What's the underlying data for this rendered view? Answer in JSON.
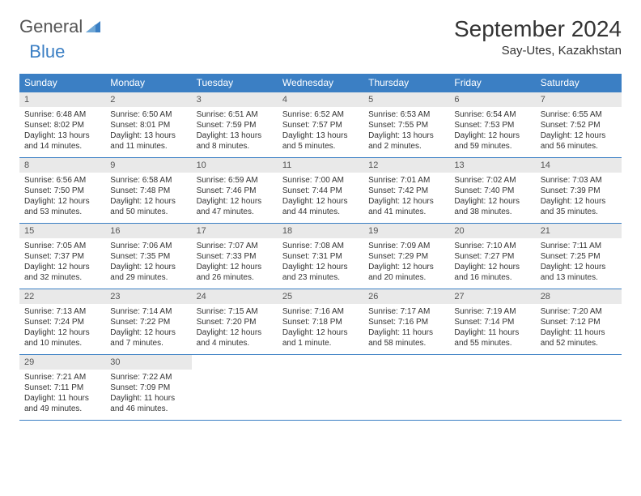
{
  "brand": {
    "part1": "General",
    "part2": "Blue"
  },
  "title": "September 2024",
  "location": "Say-Utes, Kazakhstan",
  "colors": {
    "header_bg": "#3b7fc4",
    "header_text": "#ffffff",
    "daynum_bg": "#e9e9e9",
    "text": "#333333",
    "rule": "#3b7fc4"
  },
  "dow": [
    "Sunday",
    "Monday",
    "Tuesday",
    "Wednesday",
    "Thursday",
    "Friday",
    "Saturday"
  ],
  "days": [
    {
      "n": "1",
      "sr": "Sunrise: 6:48 AM",
      "ss": "Sunset: 8:02 PM",
      "dl1": "Daylight: 13 hours",
      "dl2": "and 14 minutes."
    },
    {
      "n": "2",
      "sr": "Sunrise: 6:50 AM",
      "ss": "Sunset: 8:01 PM",
      "dl1": "Daylight: 13 hours",
      "dl2": "and 11 minutes."
    },
    {
      "n": "3",
      "sr": "Sunrise: 6:51 AM",
      "ss": "Sunset: 7:59 PM",
      "dl1": "Daylight: 13 hours",
      "dl2": "and 8 minutes."
    },
    {
      "n": "4",
      "sr": "Sunrise: 6:52 AM",
      "ss": "Sunset: 7:57 PM",
      "dl1": "Daylight: 13 hours",
      "dl2": "and 5 minutes."
    },
    {
      "n": "5",
      "sr": "Sunrise: 6:53 AM",
      "ss": "Sunset: 7:55 PM",
      "dl1": "Daylight: 13 hours",
      "dl2": "and 2 minutes."
    },
    {
      "n": "6",
      "sr": "Sunrise: 6:54 AM",
      "ss": "Sunset: 7:53 PM",
      "dl1": "Daylight: 12 hours",
      "dl2": "and 59 minutes."
    },
    {
      "n": "7",
      "sr": "Sunrise: 6:55 AM",
      "ss": "Sunset: 7:52 PM",
      "dl1": "Daylight: 12 hours",
      "dl2": "and 56 minutes."
    },
    {
      "n": "8",
      "sr": "Sunrise: 6:56 AM",
      "ss": "Sunset: 7:50 PM",
      "dl1": "Daylight: 12 hours",
      "dl2": "and 53 minutes."
    },
    {
      "n": "9",
      "sr": "Sunrise: 6:58 AM",
      "ss": "Sunset: 7:48 PM",
      "dl1": "Daylight: 12 hours",
      "dl2": "and 50 minutes."
    },
    {
      "n": "10",
      "sr": "Sunrise: 6:59 AM",
      "ss": "Sunset: 7:46 PM",
      "dl1": "Daylight: 12 hours",
      "dl2": "and 47 minutes."
    },
    {
      "n": "11",
      "sr": "Sunrise: 7:00 AM",
      "ss": "Sunset: 7:44 PM",
      "dl1": "Daylight: 12 hours",
      "dl2": "and 44 minutes."
    },
    {
      "n": "12",
      "sr": "Sunrise: 7:01 AM",
      "ss": "Sunset: 7:42 PM",
      "dl1": "Daylight: 12 hours",
      "dl2": "and 41 minutes."
    },
    {
      "n": "13",
      "sr": "Sunrise: 7:02 AM",
      "ss": "Sunset: 7:40 PM",
      "dl1": "Daylight: 12 hours",
      "dl2": "and 38 minutes."
    },
    {
      "n": "14",
      "sr": "Sunrise: 7:03 AM",
      "ss": "Sunset: 7:39 PM",
      "dl1": "Daylight: 12 hours",
      "dl2": "and 35 minutes."
    },
    {
      "n": "15",
      "sr": "Sunrise: 7:05 AM",
      "ss": "Sunset: 7:37 PM",
      "dl1": "Daylight: 12 hours",
      "dl2": "and 32 minutes."
    },
    {
      "n": "16",
      "sr": "Sunrise: 7:06 AM",
      "ss": "Sunset: 7:35 PM",
      "dl1": "Daylight: 12 hours",
      "dl2": "and 29 minutes."
    },
    {
      "n": "17",
      "sr": "Sunrise: 7:07 AM",
      "ss": "Sunset: 7:33 PM",
      "dl1": "Daylight: 12 hours",
      "dl2": "and 26 minutes."
    },
    {
      "n": "18",
      "sr": "Sunrise: 7:08 AM",
      "ss": "Sunset: 7:31 PM",
      "dl1": "Daylight: 12 hours",
      "dl2": "and 23 minutes."
    },
    {
      "n": "19",
      "sr": "Sunrise: 7:09 AM",
      "ss": "Sunset: 7:29 PM",
      "dl1": "Daylight: 12 hours",
      "dl2": "and 20 minutes."
    },
    {
      "n": "20",
      "sr": "Sunrise: 7:10 AM",
      "ss": "Sunset: 7:27 PM",
      "dl1": "Daylight: 12 hours",
      "dl2": "and 16 minutes."
    },
    {
      "n": "21",
      "sr": "Sunrise: 7:11 AM",
      "ss": "Sunset: 7:25 PM",
      "dl1": "Daylight: 12 hours",
      "dl2": "and 13 minutes."
    },
    {
      "n": "22",
      "sr": "Sunrise: 7:13 AM",
      "ss": "Sunset: 7:24 PM",
      "dl1": "Daylight: 12 hours",
      "dl2": "and 10 minutes."
    },
    {
      "n": "23",
      "sr": "Sunrise: 7:14 AM",
      "ss": "Sunset: 7:22 PM",
      "dl1": "Daylight: 12 hours",
      "dl2": "and 7 minutes."
    },
    {
      "n": "24",
      "sr": "Sunrise: 7:15 AM",
      "ss": "Sunset: 7:20 PM",
      "dl1": "Daylight: 12 hours",
      "dl2": "and 4 minutes."
    },
    {
      "n": "25",
      "sr": "Sunrise: 7:16 AM",
      "ss": "Sunset: 7:18 PM",
      "dl1": "Daylight: 12 hours",
      "dl2": "and 1 minute."
    },
    {
      "n": "26",
      "sr": "Sunrise: 7:17 AM",
      "ss": "Sunset: 7:16 PM",
      "dl1": "Daylight: 11 hours",
      "dl2": "and 58 minutes."
    },
    {
      "n": "27",
      "sr": "Sunrise: 7:19 AM",
      "ss": "Sunset: 7:14 PM",
      "dl1": "Daylight: 11 hours",
      "dl2": "and 55 minutes."
    },
    {
      "n": "28",
      "sr": "Sunrise: 7:20 AM",
      "ss": "Sunset: 7:12 PM",
      "dl1": "Daylight: 11 hours",
      "dl2": "and 52 minutes."
    },
    {
      "n": "29",
      "sr": "Sunrise: 7:21 AM",
      "ss": "Sunset: 7:11 PM",
      "dl1": "Daylight: 11 hours",
      "dl2": "and 49 minutes."
    },
    {
      "n": "30",
      "sr": "Sunrise: 7:22 AM",
      "ss": "Sunset: 7:09 PM",
      "dl1": "Daylight: 11 hours",
      "dl2": "and 46 minutes."
    }
  ],
  "layout": {
    "start_offset": 0,
    "weeks": 5,
    "cols": 7
  }
}
